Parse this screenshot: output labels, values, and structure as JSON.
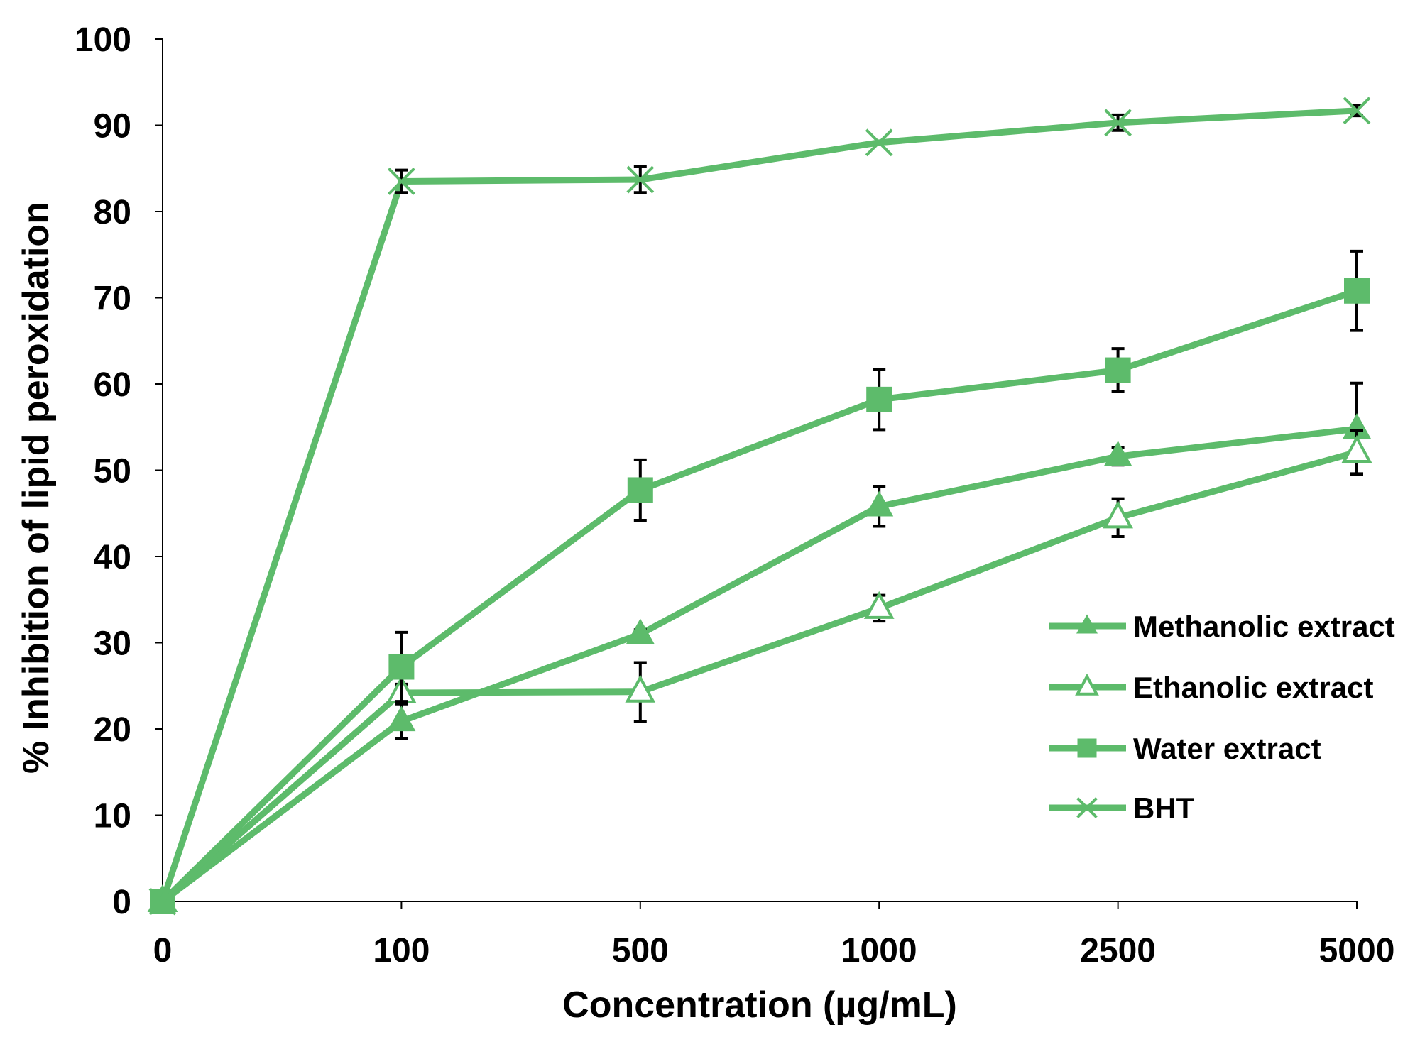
{
  "chart_data": {
    "type": "line",
    "title": "",
    "xlabel": "Concentration (µg/mL)",
    "ylabel": "% Inhibition of lipid peroxidation",
    "categories": [
      "0",
      "100",
      "500",
      "1000",
      "2500",
      "5000"
    ],
    "ylim": [
      0,
      100
    ],
    "yticks": [
      "0",
      "10",
      "20",
      "30",
      "40",
      "50",
      "60",
      "70",
      "80",
      "90",
      "100"
    ],
    "grid": false,
    "legend_position": "right",
    "color": "#5dbb6b",
    "error_bar_color": "#000000",
    "series": [
      {
        "name": "Methanolic extract",
        "marker": "filled-triangle",
        "values": [
          0,
          20.9,
          31.0,
          45.8,
          51.6,
          54.8
        ],
        "errors": [
          0,
          2.0,
          0.5,
          2.3,
          1.0,
          5.3
        ]
      },
      {
        "name": "Ethanolic extract",
        "marker": "open-triangle",
        "values": [
          0,
          24.2,
          24.3,
          34.0,
          44.5,
          52.1
        ],
        "errors": [
          0,
          1.0,
          3.4,
          1.5,
          2.2,
          2.5
        ]
      },
      {
        "name": "Water extract",
        "marker": "square",
        "values": [
          0,
          27.2,
          47.7,
          58.2,
          61.6,
          70.8
        ],
        "errors": [
          0,
          4.0,
          3.5,
          3.5,
          2.5,
          4.6
        ]
      },
      {
        "name": "BHT",
        "marker": "cross",
        "values": [
          0,
          83.5,
          83.7,
          88.0,
          90.3,
          91.7
        ],
        "errors": [
          0,
          1.3,
          1.5,
          0,
          0.9,
          0.6
        ]
      }
    ]
  }
}
